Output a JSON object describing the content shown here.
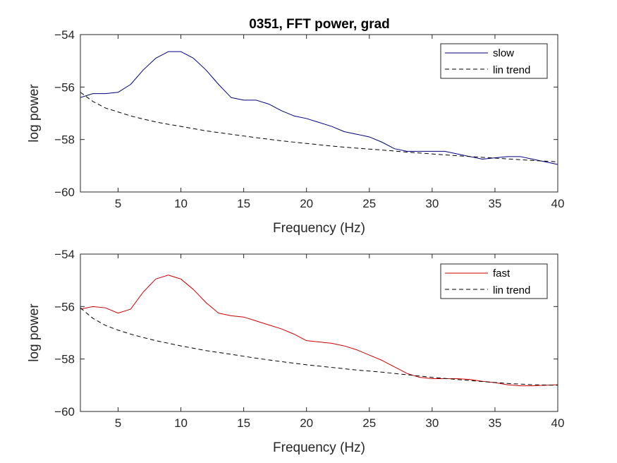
{
  "figure_title": "0351, FFT power, grad",
  "chart_data": [
    {
      "type": "line",
      "title": "0351, FFT power, grad",
      "xlabel": "Frequency (Hz)",
      "ylabel": "log power",
      "xlim": [
        2,
        40
      ],
      "ylim": [
        -60,
        -54
      ],
      "xticks": [
        5,
        10,
        15,
        20,
        25,
        30,
        35,
        40
      ],
      "yticks": [
        -60,
        -58,
        -56,
        -54
      ],
      "xtick_labels": [
        "5",
        "10",
        "15",
        "20",
        "25",
        "30",
        "35",
        "40"
      ],
      "ytick_labels": [
        "−60",
        "−58",
        "−56",
        "−54"
      ],
      "grid": false,
      "legend_position": "top-right",
      "series": [
        {
          "name": "slow",
          "color": "#00007f",
          "style": "solid",
          "x": [
            2,
            3,
            4,
            5,
            6,
            7,
            8,
            9,
            10,
            11,
            12,
            13,
            14,
            15,
            16,
            17,
            18,
            19,
            20,
            21,
            22,
            23,
            24,
            25,
            26,
            27,
            28,
            29,
            30,
            31,
            32,
            33,
            34,
            35,
            36,
            37,
            38,
            39,
            40
          ],
          "values": [
            -56.4,
            -56.25,
            -56.25,
            -56.2,
            -55.9,
            -55.35,
            -54.9,
            -54.65,
            -54.65,
            -54.9,
            -55.35,
            -55.9,
            -56.4,
            -56.5,
            -56.5,
            -56.65,
            -56.9,
            -57.1,
            -57.2,
            -57.35,
            -57.5,
            -57.7,
            -57.8,
            -57.9,
            -58.1,
            -58.35,
            -58.45,
            -58.45,
            -58.45,
            -58.45,
            -58.55,
            -58.65,
            -58.75,
            -58.7,
            -58.65,
            -58.65,
            -58.75,
            -58.85,
            -58.95
          ]
        },
        {
          "name": "lin trend",
          "color": "#000000",
          "style": "dashed",
          "x": [
            2,
            3,
            4,
            5,
            6,
            7,
            8,
            9,
            10,
            12,
            14,
            16,
            18,
            20,
            22,
            24,
            26,
            28,
            30,
            32,
            34,
            36,
            38,
            40
          ],
          "values": [
            -56.2,
            -56.55,
            -56.8,
            -56.95,
            -57.1,
            -57.22,
            -57.33,
            -57.42,
            -57.5,
            -57.67,
            -57.8,
            -57.93,
            -58.05,
            -58.15,
            -58.25,
            -58.33,
            -58.4,
            -58.48,
            -58.55,
            -58.62,
            -58.68,
            -58.74,
            -58.8,
            -58.85
          ]
        }
      ]
    },
    {
      "type": "line",
      "xlabel": "Frequency (Hz)",
      "ylabel": "log power",
      "xlim": [
        2,
        40
      ],
      "ylim": [
        -60,
        -54
      ],
      "xticks": [
        5,
        10,
        15,
        20,
        25,
        30,
        35,
        40
      ],
      "yticks": [
        -60,
        -58,
        -56,
        -54
      ],
      "xtick_labels": [
        "5",
        "10",
        "15",
        "20",
        "25",
        "30",
        "35",
        "40"
      ],
      "ytick_labels": [
        "−60",
        "−58",
        "−56",
        "−54"
      ],
      "grid": false,
      "legend_position": "top-right",
      "series": [
        {
          "name": "fast",
          "color": "#cc0000",
          "style": "solid",
          "x": [
            2,
            3,
            4,
            5,
            6,
            7,
            8,
            9,
            10,
            11,
            12,
            13,
            14,
            15,
            16,
            17,
            18,
            19,
            20,
            21,
            22,
            23,
            24,
            25,
            26,
            27,
            28,
            29,
            30,
            31,
            32,
            33,
            34,
            35,
            36,
            37,
            38,
            39,
            40
          ],
          "values": [
            -56.1,
            -56.0,
            -56.05,
            -56.25,
            -56.1,
            -55.45,
            -54.95,
            -54.8,
            -54.95,
            -55.35,
            -55.85,
            -56.25,
            -56.35,
            -56.4,
            -56.55,
            -56.7,
            -56.85,
            -57.05,
            -57.3,
            -57.35,
            -57.4,
            -57.5,
            -57.65,
            -57.85,
            -58.05,
            -58.3,
            -58.55,
            -58.7,
            -58.75,
            -58.75,
            -58.75,
            -58.78,
            -58.85,
            -58.9,
            -58.98,
            -59.02,
            -59.02,
            -59.0,
            -58.98
          ]
        },
        {
          "name": "lin trend",
          "color": "#000000",
          "style": "dashed",
          "x": [
            2,
            3,
            4,
            5,
            6,
            7,
            8,
            9,
            10,
            12,
            14,
            16,
            18,
            20,
            22,
            24,
            26,
            28,
            30,
            32,
            34,
            36,
            38,
            40
          ],
          "values": [
            -56.05,
            -56.45,
            -56.72,
            -56.9,
            -57.05,
            -57.18,
            -57.3,
            -57.4,
            -57.5,
            -57.68,
            -57.82,
            -57.97,
            -58.1,
            -58.22,
            -58.32,
            -58.42,
            -58.5,
            -58.6,
            -58.7,
            -58.78,
            -58.86,
            -58.93,
            -58.98,
            -59.0
          ]
        }
      ]
    }
  ]
}
